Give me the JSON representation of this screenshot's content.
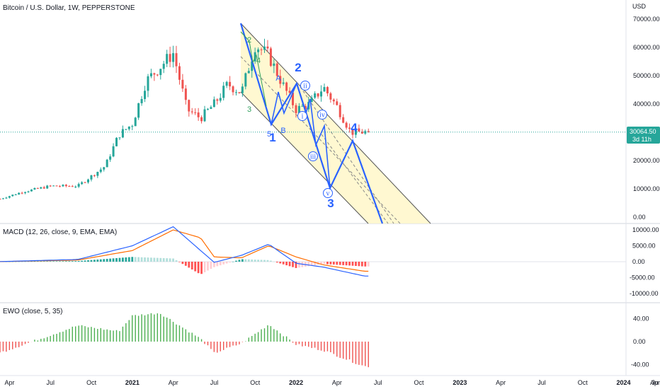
{
  "header": {
    "title": "Bitcoin / U.S. Dollar, 1W, PEPPERSTONE",
    "currency": "USD"
  },
  "price_tag": {
    "value": "30064.50",
    "countdown": "3d 11h",
    "color": "#26a69a"
  },
  "colors": {
    "up": "#26a69a",
    "down": "#ef5350",
    "wave": "#2962ff",
    "channel_fill": "#fff7cc",
    "macd_line": "#2962ff",
    "signal_line": "#ff6d00",
    "ewo_up": "#4caf50",
    "ewo_down": "#ef5350"
  },
  "macd_panel": {
    "label": "MACD (12, 26, close, 9, EMA, EMA)"
  },
  "ewo_panel": {
    "label": "EWO (close, 5, 35)"
  },
  "wave_labels": {
    "major": [
      "1",
      "2",
      "3",
      "4",
      "5"
    ],
    "minor_abc": [
      "A",
      "B"
    ],
    "minor_circled": [
      "i",
      "ii",
      "iii",
      "iv",
      "v"
    ],
    "sub_green": [
      "2",
      "3",
      "4"
    ]
  },
  "chart_data": [
    {
      "type": "candlestick",
      "title": "Bitcoin / U.S. Dollar, 1W, PEPPERSTONE",
      "x_ticks": [
        "Apr",
        "Jul",
        "Oct",
        "2021",
        "Apr",
        "Jul",
        "Oct",
        "2022",
        "Apr",
        "Jul",
        "Oct",
        "2023",
        "Apr",
        "Jul",
        "Oct",
        "2024",
        "Apr",
        "Ju"
      ],
      "x_ticks_bold": [
        "2021",
        "2022",
        "2023",
        "2024"
      ],
      "y_ticks": [
        "70000.00",
        "60000.00",
        "50000.00",
        "40000.00",
        "30000.00",
        "20000.00",
        "10000.00",
        "0.00"
      ],
      "ylim": [
        -2000,
        72000
      ],
      "grid": false,
      "close_anchors": {
        "x": [
          "2020-03",
          "2020-05",
          "2020-07",
          "2020-09",
          "2020-11",
          "2020-12",
          "2021-01",
          "2021-02",
          "2021-04",
          "2021-05",
          "2021-06",
          "2021-07",
          "2021-08",
          "2021-09",
          "2021-10",
          "2021-11",
          "2021-12",
          "2022-01",
          "2022-02",
          "2022-03",
          "2022-04",
          "2022-05",
          "2022-06"
        ],
        "y": [
          6000,
          9000,
          11000,
          11000,
          18000,
          29000,
          33000,
          48000,
          58000,
          38000,
          35000,
          40000,
          47000,
          44000,
          61000,
          57000,
          47000,
          38000,
          40000,
          46000,
          39000,
          30000,
          30064
        ]
      },
      "last_close": 30064.5
    },
    {
      "type": "line+bar",
      "title": "MACD (12, 26, close, 9, EMA, EMA)",
      "y_ticks": [
        "10000.00",
        "5000.00",
        "0.00",
        "-5000.00",
        "-10000.00"
      ],
      "ylim": [
        -12000,
        12000
      ],
      "series_anchors": {
        "x": [
          "2020-03",
          "2020-09",
          "2021-01",
          "2021-04",
          "2021-06",
          "2021-07",
          "2021-09",
          "2021-11",
          "2022-01",
          "2022-03",
          "2022-06"
        ],
        "macd": [
          0,
          700,
          5000,
          11000,
          3500,
          -200,
          2000,
          5500,
          -500,
          -1700,
          -4500
        ],
        "signal": [
          0,
          500,
          3500,
          10000,
          7500,
          1500,
          1200,
          5000,
          1500,
          -1000,
          -3000
        ]
      }
    },
    {
      "type": "bar",
      "title": "EWO (close, 5, 35)",
      "y_ticks": [
        "40.00",
        "0.00",
        "-40.00"
      ],
      "ylim": [
        -50,
        60
      ],
      "series_anchors": {
        "x": [
          "2020-03",
          "2020-09",
          "2020-12",
          "2021-01",
          "2021-03",
          "2021-06",
          "2021-07",
          "2021-09",
          "2021-11",
          "2022-01",
          "2022-03",
          "2022-06"
        ],
        "ewo": [
          -22,
          28,
          18,
          45,
          50,
          5,
          -20,
          -3,
          30,
          -5,
          -15,
          -43
        ]
      }
    }
  ]
}
